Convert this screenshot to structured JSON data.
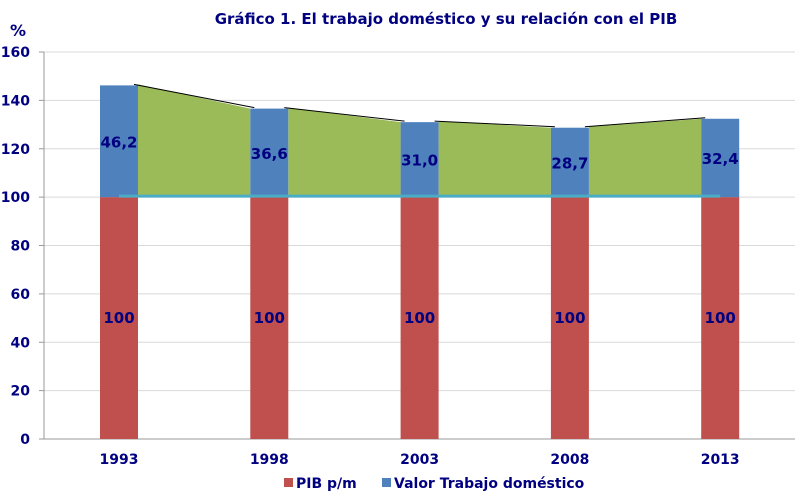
{
  "chart_data": {
    "type": "bar",
    "title": "Gráfico 1. El trabajo doméstico y su relación con el PIB",
    "ylabel": "%",
    "xlabel": "",
    "ylim": [
      0,
      160
    ],
    "yticks": [
      0,
      20,
      40,
      60,
      80,
      100,
      120,
      140,
      160
    ],
    "categories": [
      "1993",
      "1998",
      "2003",
      "2008",
      "2013"
    ],
    "series": [
      {
        "name": "PIB p/m",
        "values": [
          100,
          100,
          100,
          100,
          100
        ],
        "labels": [
          "100",
          "100",
          "100",
          "100",
          "100"
        ],
        "color": "#c0504d"
      },
      {
        "name": "Valor Trabajo doméstico",
        "values": [
          46.2,
          36.6,
          31.0,
          28.7,
          32.4
        ],
        "labels": [
          "46,2",
          "36,6",
          "31,0",
          "28,7",
          "32,4"
        ],
        "color": "#4f81bd"
      }
    ],
    "area_color": "#9bbb59",
    "baseline_color": "#4bacc6",
    "legend": "bottom",
    "grid": true
  }
}
